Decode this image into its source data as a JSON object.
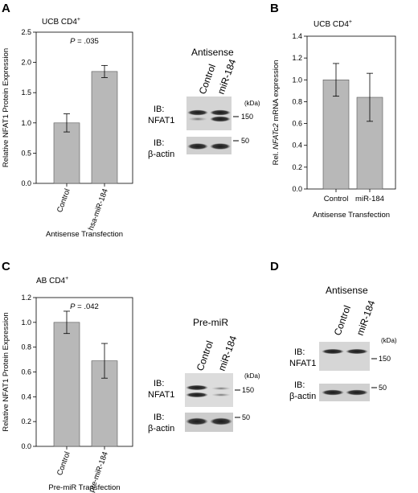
{
  "panels": {
    "A": {
      "letter": "A",
      "subtitle": "UCB CD4",
      "subtitle_sup": "+"
    },
    "B": {
      "letter": "B",
      "subtitle": "UCB CD4",
      "subtitle_sup": "+"
    },
    "C": {
      "letter": "C",
      "subtitle": "AB CD4",
      "subtitle_sup": "+"
    },
    "D": {
      "letter": "D"
    }
  },
  "blots": {
    "A": {
      "title": "Antisense",
      "lanes": [
        "Control",
        "miR-184"
      ],
      "ib_top": [
        "IB:",
        "NFAT1"
      ],
      "ib_bottom": [
        "IB:",
        "β-actin"
      ],
      "kda": "(kDa)",
      "marker_top": "150",
      "marker_bottom": "50"
    },
    "C": {
      "title": "Pre-miR",
      "lanes": [
        "Control",
        "miR-184"
      ],
      "ib_top": [
        "IB:",
        "NFAT1"
      ],
      "ib_bottom": [
        "IB:",
        "β-actin"
      ],
      "kda": "(kDa)",
      "marker_top": "150",
      "marker_bottom": "50"
    },
    "D": {
      "title": "Antisense",
      "lanes": [
        "Control",
        "miR-184"
      ],
      "ib_top": [
        "IB:",
        "NFAT1"
      ],
      "ib_bottom": [
        "IB:",
        "β-actin"
      ],
      "kda": "(kDa)",
      "marker_top": "150",
      "marker_bottom": "50"
    }
  },
  "chart_data": [
    {
      "id": "A",
      "type": "bar",
      "categories": [
        "Control",
        "hsa-miR-184"
      ],
      "values": [
        1.0,
        1.85
      ],
      "errors": [
        0.15,
        0.1
      ],
      "ylabel": "Relative NFAT1 Protein Expression",
      "xlabel": "Antisense Transfection",
      "ylim": [
        0,
        2.5
      ],
      "yticks": [
        "0.0",
        "0.5",
        "1.0",
        "1.5",
        "2.0",
        "2.5"
      ],
      "annotation": "P = .035",
      "bar_color": "#b8b8b8"
    },
    {
      "id": "B",
      "type": "bar",
      "categories": [
        "Control",
        "miR-184"
      ],
      "values": [
        1.0,
        0.84
      ],
      "errors": [
        0.15,
        0.22
      ],
      "ylabel": "Rel. NFATc2 mRNA expression",
      "xlabel": "Antisense Transfection",
      "ylim": [
        0,
        1.4
      ],
      "yticks": [
        "0.0",
        "0.2",
        "0.4",
        "0.6",
        "0.8",
        "1.0",
        "1.2",
        "1.4"
      ],
      "bar_color": "#b8b8b8"
    },
    {
      "id": "C",
      "type": "bar",
      "categories": [
        "Control",
        "pre-miR-184"
      ],
      "values": [
        1.0,
        0.69
      ],
      "errors": [
        0.09,
        0.14
      ],
      "ylabel": "Relative NFAT1 Protein Expression",
      "xlabel": "Pre-miR Transfection",
      "ylim": [
        0,
        1.2
      ],
      "yticks": [
        "0.0",
        "0.2",
        "0.4",
        "0.6",
        "0.8",
        "1.0",
        "1.2"
      ],
      "annotation": "P = .042",
      "bar_color": "#b8b8b8"
    }
  ]
}
